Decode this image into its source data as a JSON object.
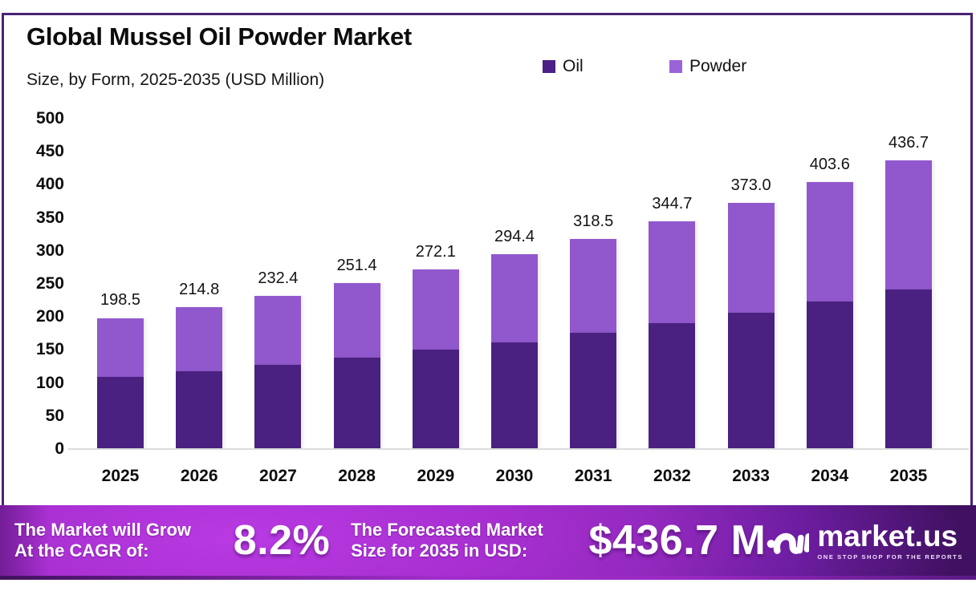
{
  "page": {
    "title": "Global Mussel Oil Powder Market",
    "subtitle": "Size, by Form, 2025-2035 (USD Million)"
  },
  "legend": {
    "items": [
      {
        "label": "Oil",
        "color": "#4a1f86"
      },
      {
        "label": "Powder",
        "color": "#9b63d8"
      }
    ]
  },
  "chart_data": {
    "type": "bar",
    "stacked": true,
    "title": "Global Mussel Oil Powder Market",
    "subtitle": "Size, by Form, 2025-2035 (USD Million)",
    "unit": "USD Million",
    "categories": [
      "2025",
      "2026",
      "2027",
      "2028",
      "2029",
      "2030",
      "2031",
      "2032",
      "2033",
      "2034",
      "2035"
    ],
    "series": [
      {
        "name": "Oil",
        "color": "#4a2180",
        "values": [
          109,
          118,
          128,
          138.5,
          150,
          162,
          175.5,
          190,
          206,
          223.5,
          242
        ]
      },
      {
        "name": "Powder",
        "color": "#9158cd",
        "values": [
          89.5,
          96.8,
          104.4,
          112.9,
          122.1,
          132.4,
          143.0,
          154.7,
          167.0,
          180.1,
          194.7
        ]
      }
    ],
    "totals": [
      198.5,
      214.8,
      232.4,
      251.4,
      272.1,
      294.4,
      318.5,
      344.7,
      373.0,
      403.6,
      436.7
    ],
    "total_labels": [
      "198.5",
      "214.8",
      "232.4",
      "251.4",
      "272.1",
      "294.4",
      "318.5",
      "344.7",
      "373.0",
      "403.6",
      "436.7"
    ],
    "y_ticks": [
      0,
      50,
      100,
      150,
      200,
      250,
      300,
      350,
      400,
      450,
      500
    ],
    "ylim": [
      0,
      500
    ],
    "grid": false,
    "legend_position": "top-right",
    "cagr": "8.2%"
  },
  "banner": {
    "cagr_label_line1": "The Market will Grow",
    "cagr_label_line2": "At the CAGR of:",
    "cagr_value": "8.2%",
    "forecast_label_line1": "The Forecasted Market",
    "forecast_label_line2": "Size for 2035 in USD:",
    "forecast_value": "$436.7 M",
    "brand": "market.us",
    "brand_tagline": "ONE STOP SHOP FOR THE REPORTS"
  },
  "colors": {
    "card_border": "#4a2173",
    "oil": "#4a2180",
    "powder": "#9158cd",
    "axis_line": "#dcdcdc",
    "banner_bright": "#a62ecf",
    "banner_dark": "#3f1160"
  }
}
